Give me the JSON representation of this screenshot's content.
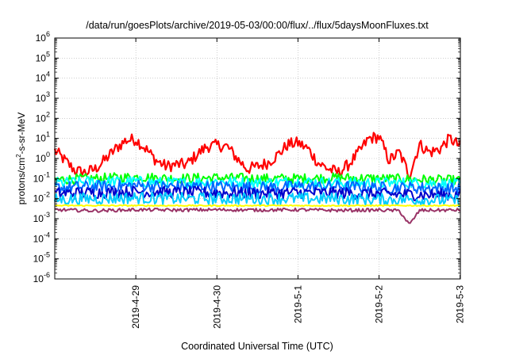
{
  "chart_data": {
    "type": "line",
    "title": "/data/run/goesPlots/archive/2019-05-03/00:00/flux/../flux/5daysMoonFluxes.txt",
    "xlabel": "Coordinated Universal Time (UTC)",
    "ylabel": "protons/cm²-s-sr-MeV",
    "x_scale": "time",
    "xlim": [
      "2019-04-28T00:00",
      "2019-05-03T00:05"
    ],
    "x_ticks": [
      "2019-4-29",
      "2019-4-30",
      "2019-5-1",
      "2019-5-2",
      "2019-5-3"
    ],
    "y_scale": "log",
    "ylim": [
      1e-06,
      1000000.0
    ],
    "y_ticks": [
      "10^-6",
      "10^-5",
      "10^-4",
      "10^-3",
      "10^-2",
      "10^-1",
      "10^0",
      "10^1",
      "10^2",
      "10^3",
      "10^4",
      "10^5",
      "10^6"
    ],
    "grid": true,
    "legend": "none",
    "series": [
      {
        "color": "#ff0000",
        "x": [
          "2019-04-28T00:00",
          "2019-04-28T03:00",
          "2019-04-28T06:00",
          "2019-04-28T09:00",
          "2019-04-28T12:00",
          "2019-04-28T15:00",
          "2019-04-28T18:00",
          "2019-04-28T21:00",
          "2019-04-29T00:00",
          "2019-04-29T03:00",
          "2019-04-29T06:00",
          "2019-04-29T09:00",
          "2019-04-29T12:00",
          "2019-04-29T15:00",
          "2019-04-29T18:00",
          "2019-04-29T21:00",
          "2019-04-30T00:00",
          "2019-04-30T03:00",
          "2019-04-30T06:00",
          "2019-04-30T09:00",
          "2019-04-30T12:00",
          "2019-04-30T15:00",
          "2019-04-30T18:00",
          "2019-04-30T21:00",
          "2019-05-01T00:00",
          "2019-05-01T03:00",
          "2019-05-01T06:00",
          "2019-05-01T09:00",
          "2019-05-01T12:00",
          "2019-05-01T15:00",
          "2019-05-01T18:00",
          "2019-05-01T21:00",
          "2019-05-02T00:00",
          "2019-05-02T03:00",
          "2019-05-02T06:00",
          "2019-05-02T09:00",
          "2019-05-02T12:00",
          "2019-05-02T15:00",
          "2019-05-02T18:00",
          "2019-05-02T21:00",
          "2019-05-03T00:00"
        ],
        "values": [
          2.5,
          0.8,
          0.25,
          0.2,
          0.3,
          0.9,
          3,
          8,
          9,
          3,
          0.8,
          0.4,
          0.5,
          0.5,
          1.5,
          4,
          4.5,
          4,
          1,
          0.3,
          0.4,
          0.6,
          1.5,
          5,
          6,
          3,
          0.6,
          0.3,
          0.2,
          0.5,
          2,
          10,
          12,
          0.8,
          2,
          0.15,
          5,
          2,
          3,
          10,
          4
        ]
      },
      {
        "color": "#00ff00",
        "x": [
          "2019-04-28T00:00",
          "2019-04-28T12:00",
          "2019-04-29T00:00",
          "2019-04-29T12:00",
          "2019-04-30T00:00",
          "2019-04-30T12:00",
          "2019-05-01T00:00",
          "2019-05-01T12:00",
          "2019-05-02T00:00",
          "2019-05-02T12:00",
          "2019-05-03T00:00"
        ],
        "values": [
          0.09,
          0.1,
          0.12,
          0.1,
          0.11,
          0.1,
          0.1,
          0.11,
          0.1,
          0.09,
          0.08
        ]
      },
      {
        "color": "#00ffff",
        "x": [
          "2019-04-28T00:00",
          "2019-04-28T12:00",
          "2019-04-29T00:00",
          "2019-04-29T12:00",
          "2019-04-30T00:00",
          "2019-04-30T12:00",
          "2019-05-01T00:00",
          "2019-05-01T12:00",
          "2019-05-02T00:00",
          "2019-05-02T12:00",
          "2019-05-03T00:00"
        ],
        "values": [
          0.06,
          0.07,
          0.07,
          0.06,
          0.07,
          0.06,
          0.07,
          0.06,
          0.06,
          0.06,
          0.05
        ]
      },
      {
        "color": "#0066ff",
        "x": [
          "2019-04-28T00:00",
          "2019-04-28T12:00",
          "2019-04-29T00:00",
          "2019-04-29T12:00",
          "2019-04-30T00:00",
          "2019-04-30T12:00",
          "2019-05-01T00:00",
          "2019-05-01T12:00",
          "2019-05-02T00:00",
          "2019-05-02T12:00",
          "2019-05-03T00:00"
        ],
        "values": [
          0.035,
          0.04,
          0.045,
          0.04,
          0.04,
          0.035,
          0.04,
          0.04,
          0.035,
          0.035,
          0.03
        ]
      },
      {
        "color": "#0000cc",
        "x": [
          "2019-04-28T00:00",
          "2019-04-28T12:00",
          "2019-04-29T00:00",
          "2019-04-29T12:00",
          "2019-04-30T00:00",
          "2019-04-30T12:00",
          "2019-05-01T00:00",
          "2019-05-01T12:00",
          "2019-05-02T00:00",
          "2019-05-02T12:00",
          "2019-05-03T00:00"
        ],
        "values": [
          0.018,
          0.02,
          0.022,
          0.02,
          0.02,
          0.018,
          0.02,
          0.019,
          0.017,
          0.016,
          0.015
        ]
      },
      {
        "color": "#00ccff",
        "x": [
          "2019-04-28T00:00",
          "2019-04-28T12:00",
          "2019-04-29T00:00",
          "2019-04-29T12:00",
          "2019-04-30T00:00",
          "2019-04-30T12:00",
          "2019-05-01T00:00",
          "2019-05-01T12:00",
          "2019-05-02T00:00",
          "2019-05-02T12:00",
          "2019-05-03T00:00"
        ],
        "values": [
          0.009,
          0.01,
          0.011,
          0.01,
          0.01,
          0.01,
          0.01,
          0.01,
          0.009,
          0.009,
          0.008
        ]
      },
      {
        "color": "#ffff00",
        "x": [
          "2019-04-28T00:00",
          "2019-04-28T12:00",
          "2019-04-29T00:00",
          "2019-04-29T12:00",
          "2019-04-30T00:00",
          "2019-04-30T12:00",
          "2019-05-01T00:00",
          "2019-05-01T12:00",
          "2019-05-02T00:00",
          "2019-05-02T12:00",
          "2019-05-03T00:00"
        ],
        "values": [
          0.0045,
          0.0045,
          0.0045,
          0.0045,
          0.0045,
          0.0045,
          0.0045,
          0.0045,
          0.0045,
          0.0045,
          0.0045
        ]
      },
      {
        "color": "#993366",
        "x": [
          "2019-04-28T00:00",
          "2019-04-28T12:00",
          "2019-04-29T00:00",
          "2019-04-29T12:00",
          "2019-04-30T00:00",
          "2019-04-30T12:00",
          "2019-05-01T00:00",
          "2019-05-01T12:00",
          "2019-05-02T00:00",
          "2019-05-02T06:00",
          "2019-05-02T09:00",
          "2019-05-02T12:00",
          "2019-05-03T00:00"
        ],
        "values": [
          0.0028,
          0.0025,
          0.0028,
          0.0027,
          0.0028,
          0.0027,
          0.0028,
          0.0026,
          0.0027,
          0.0025,
          0.0005,
          0.0026,
          0.0027
        ]
      }
    ]
  }
}
